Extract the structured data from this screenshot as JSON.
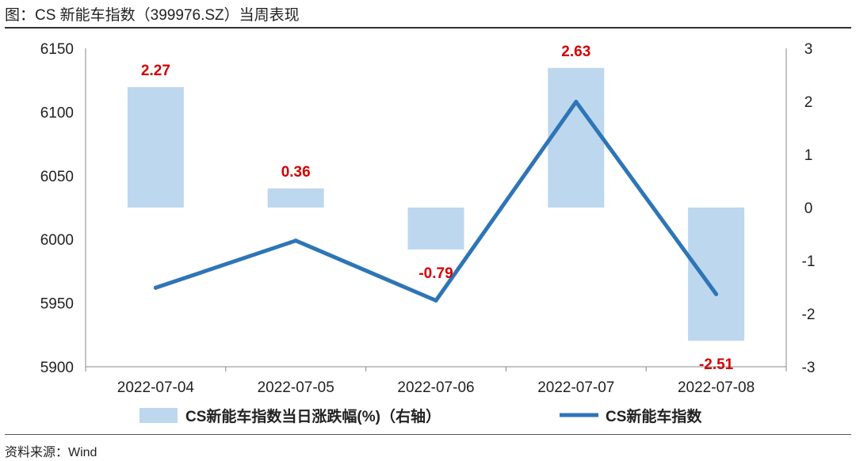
{
  "header": {
    "title": "图：CS 新能车指数（399976.SZ）当周表现"
  },
  "footer": {
    "source": "资料来源：Wind"
  },
  "colors": {
    "bar": "#bdd7ee",
    "line": "#2e75b6",
    "label": "#d40000"
  },
  "chart_data": {
    "type": "bar",
    "categories": [
      "2022-07-04",
      "2022-07-05",
      "2022-07-06",
      "2022-07-07",
      "2022-07-08"
    ],
    "series": [
      {
        "name": "CS新能车指数当日涨跌幅(%)（右轴）",
        "type": "bar",
        "axis": "right",
        "values": [
          2.27,
          0.36,
          -0.79,
          2.63,
          -2.51
        ],
        "labels": [
          "2.27",
          "0.36",
          "-0.79",
          "2.63",
          "-2.51"
        ]
      },
      {
        "name": "CS新能车指数",
        "type": "line",
        "axis": "left",
        "values": [
          5962,
          5999,
          5952,
          6108,
          5957
        ]
      }
    ],
    "y_left": {
      "min": 5900,
      "max": 6150,
      "ticks": [
        6150,
        6100,
        6050,
        6000,
        5950,
        5900
      ]
    },
    "y_right": {
      "min": -3,
      "max": 3,
      "ticks": [
        3,
        2,
        1,
        0,
        -1,
        -2,
        -3
      ]
    },
    "grid": false,
    "legend": "bottom"
  }
}
